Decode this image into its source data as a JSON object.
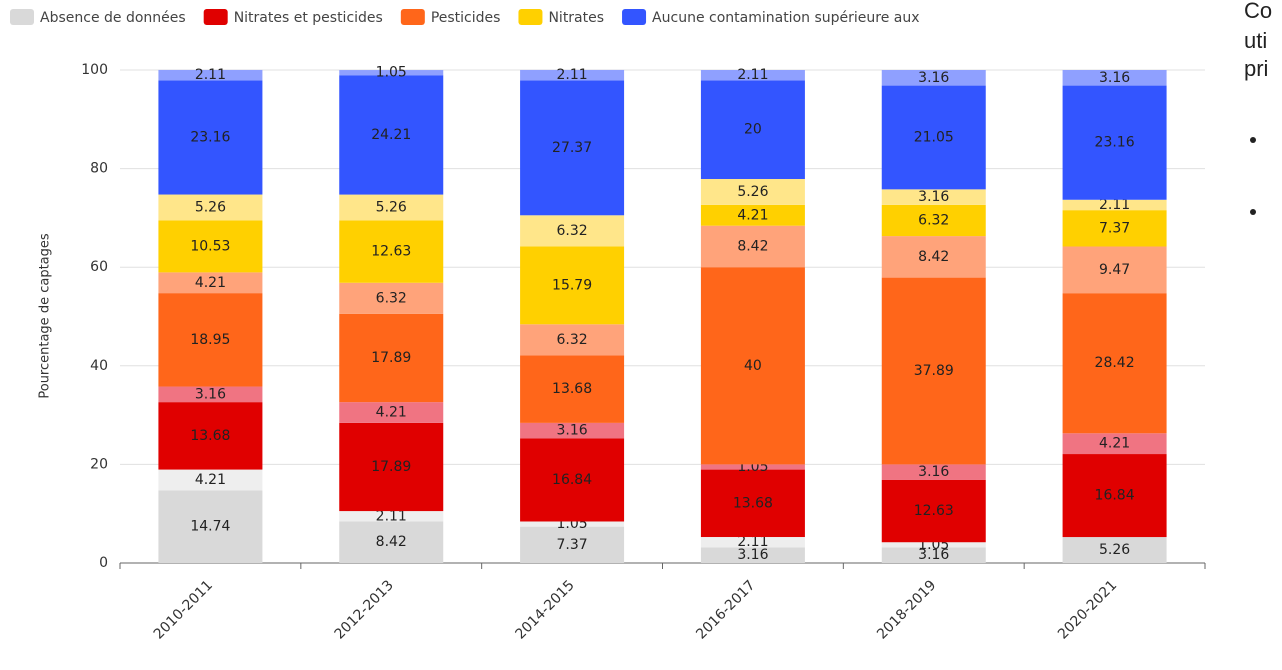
{
  "chart_data": {
    "type": "stacked_bar",
    "y_axis_label": "Pourcentage de captages",
    "categories": [
      "2010-2011",
      "2012-2013",
      "2014-2015",
      "2016-2017",
      "2018-2019",
      "2020-2021"
    ],
    "series": [
      {
        "name": "Absence de données",
        "color": "#d9d9d9",
        "values": [
          14.74,
          8.42,
          7.37,
          3.16,
          3.16,
          5.26
        ]
      },
      {
        "color": "#eeeeee",
        "values": [
          4.21,
          2.11,
          1.05,
          2.11,
          1.05,
          null
        ]
      },
      {
        "name": "Nitrates et pesticides",
        "color": "#e00000",
        "values": [
          13.68,
          17.89,
          16.84,
          13.68,
          12.63,
          16.84
        ]
      },
      {
        "color": "#f07482",
        "values": [
          3.16,
          4.21,
          3.16,
          1.05,
          3.16,
          4.21
        ]
      },
      {
        "name": "Pesticides",
        "color": "#ff661a",
        "values": [
          18.95,
          17.89,
          13.68,
          40,
          37.89,
          28.42
        ]
      },
      {
        "color": "#ffa37a",
        "values": [
          4.21,
          6.32,
          6.32,
          8.42,
          8.42,
          9.47
        ]
      },
      {
        "name": "Nitrates",
        "color": "#ffd000",
        "values": [
          10.53,
          12.63,
          15.79,
          4.21,
          6.32,
          7.37
        ]
      },
      {
        "color": "#ffe68a",
        "values": [
          5.26,
          5.26,
          6.32,
          5.26,
          3.16,
          2.11
        ]
      },
      {
        "name": "Aucune contamination supérieure aux",
        "color": "#3355ff",
        "values": [
          23.16,
          24.21,
          27.37,
          20,
          21.05,
          23.16
        ]
      },
      {
        "color": "#8fa0ff",
        "values": [
          2.11,
          1.05,
          2.11,
          2.11,
          3.16,
          3.16
        ]
      }
    ],
    "ylim": [
      0,
      100
    ],
    "yticks": [
      0,
      20,
      40,
      60,
      80,
      100
    ],
    "grid": true
  },
  "side_text": [
    "Co",
    "uti",
    "pri"
  ]
}
